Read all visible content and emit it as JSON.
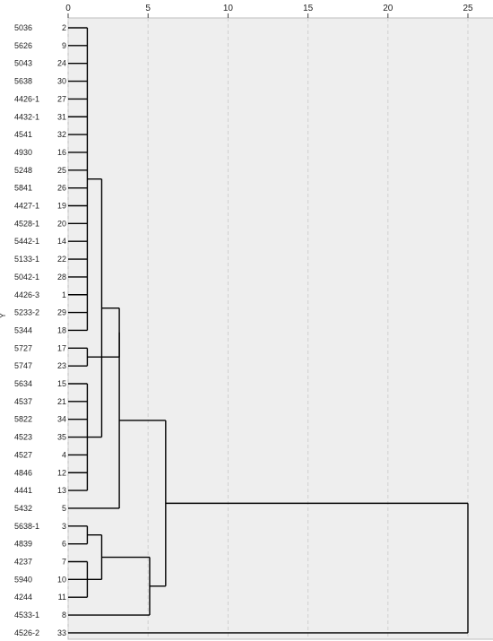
{
  "chart_data": {
    "type": "dendrogram",
    "title": "",
    "ylabel": "Y",
    "xlim": [
      0,
      25
    ],
    "x_ticks": [
      "0",
      "5",
      "10",
      "15",
      "20",
      "25"
    ],
    "grid": "vertical dashed lines at ticks",
    "colors": {
      "plot_background": "#eeeeee",
      "line": "#000000",
      "grid": "#d0d0d0"
    },
    "leaves": [
      {
        "name": "5036",
        "id": "2"
      },
      {
        "name": "5626",
        "id": "9"
      },
      {
        "name": "5043",
        "id": "24"
      },
      {
        "name": "5638",
        "id": "30"
      },
      {
        "name": "4426-1",
        "id": "27"
      },
      {
        "name": "4432-1",
        "id": "31"
      },
      {
        "name": "4541",
        "id": "32"
      },
      {
        "name": "4930",
        "id": "16"
      },
      {
        "name": "5248",
        "id": "25"
      },
      {
        "name": "5841",
        "id": "26"
      },
      {
        "name": "4427-1",
        "id": "19"
      },
      {
        "name": "4528-1",
        "id": "20"
      },
      {
        "name": "5442-1",
        "id": "14"
      },
      {
        "name": "5133-1",
        "id": "22"
      },
      {
        "name": "5042-1",
        "id": "28"
      },
      {
        "name": "4426-3",
        "id": "1"
      },
      {
        "name": "5233-2",
        "id": "29"
      },
      {
        "name": "5344",
        "id": "18"
      },
      {
        "name": "5727",
        "id": "17"
      },
      {
        "name": "5747",
        "id": "23"
      },
      {
        "name": "5634",
        "id": "15"
      },
      {
        "name": "4537",
        "id": "21"
      },
      {
        "name": "5822",
        "id": "34"
      },
      {
        "name": "4523",
        "id": "35"
      },
      {
        "name": "4527",
        "id": "4"
      },
      {
        "name": "4846",
        "id": "12"
      },
      {
        "name": "4441",
        "id": "13"
      },
      {
        "name": "5432",
        "id": "5"
      },
      {
        "name": "5638-1",
        "id": "3"
      },
      {
        "name": "4839",
        "id": "6"
      },
      {
        "name": "4237",
        "id": "7"
      },
      {
        "name": "5940",
        "id": "10"
      },
      {
        "name": "4244",
        "id": "11"
      },
      {
        "name": "4533-1",
        "id": "8"
      },
      {
        "name": "4526-2",
        "id": "33"
      }
    ],
    "merges": [
      {
        "children": [
          "L0",
          "L1",
          "L2",
          "L3",
          "L4",
          "L5",
          "L6",
          "L7",
          "L8",
          "L9",
          "L10",
          "L11",
          "L12",
          "L13",
          "L14",
          "L15",
          "L16",
          "L17"
        ],
        "height": 1.2
      },
      {
        "children": [
          "L18",
          "L19"
        ],
        "height": 1.2
      },
      {
        "children": [
          "L20",
          "L21",
          "L22",
          "L23",
          "L24",
          "L25",
          "L26"
        ],
        "height": 1.2
      },
      {
        "children": [
          "M0",
          "M2"
        ],
        "height": 2.1
      },
      {
        "children": [
          "M1",
          "M3"
        ],
        "height": 3.2
      },
      {
        "children": [
          "M4",
          "L27"
        ],
        "height": 3.2
      },
      {
        "children": [
          "L28",
          "L29"
        ],
        "height": 1.2
      },
      {
        "children": [
          "L30",
          "L31",
          "L32"
        ],
        "height": 1.2
      },
      {
        "children": [
          "M6",
          "M7"
        ],
        "height": 2.1
      },
      {
        "children": [
          "M8",
          "L33"
        ],
        "height": 5.1
      },
      {
        "children": [
          "M5",
          "M9"
        ],
        "height": 6.1
      },
      {
        "children": [
          "M10",
          "L34"
        ],
        "height": 25
      }
    ]
  }
}
